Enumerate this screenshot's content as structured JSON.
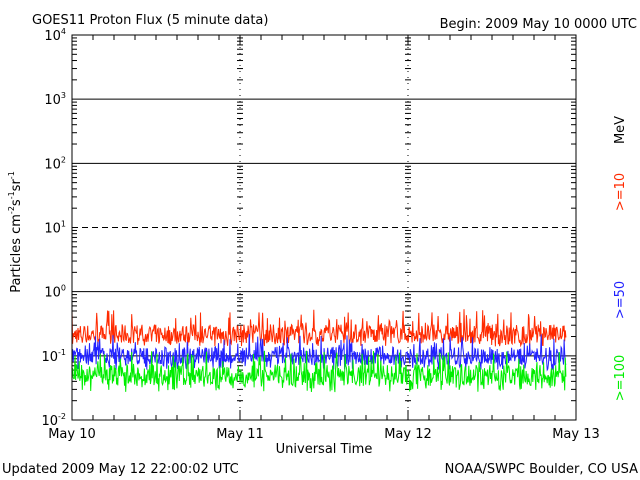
{
  "chart_data": {
    "type": "line",
    "title": "GOES11 Proton Flux (5 minute data)",
    "begin": "Begin: 2009 May 10 0000 UTC",
    "xlabel": "Universal Time",
    "ylabel_parts": [
      "Particles cm",
      "-2",
      "s",
      "-1",
      "sr",
      "-1"
    ],
    "yscale": "log",
    "ylim": [
      0.01,
      10000
    ],
    "y_ticks": [
      {
        "base": "10",
        "exp": "-2"
      },
      {
        "base": "10",
        "exp": "-1"
      },
      {
        "base": "10",
        "exp": "0"
      },
      {
        "base": "10",
        "exp": "1"
      },
      {
        "base": "10",
        "exp": "2"
      },
      {
        "base": "10",
        "exp": "3"
      },
      {
        "base": "10",
        "exp": "4"
      }
    ],
    "x_ticks": [
      "May 10",
      "May 11",
      "May 12",
      "May 13"
    ],
    "xlim_days": [
      0,
      3
    ],
    "grid": true,
    "unit_label": "MeV",
    "series": [
      {
        "name": ">=10",
        "color": "#ff2a00",
        "mean": 0.22,
        "min": 0.14,
        "max": 0.55
      },
      {
        "name": ">=50",
        "color": "#2222ff",
        "mean": 0.1,
        "min": 0.06,
        "max": 0.22
      },
      {
        "name": ">=100",
        "color": "#00ee00",
        "mean": 0.05,
        "min": 0.027,
        "max": 0.12
      }
    ]
  },
  "footer": {
    "updated": "Updated 2009 May 12 22:00:02 UTC",
    "credit": "NOAA/SWPC Boulder, CO USA"
  }
}
